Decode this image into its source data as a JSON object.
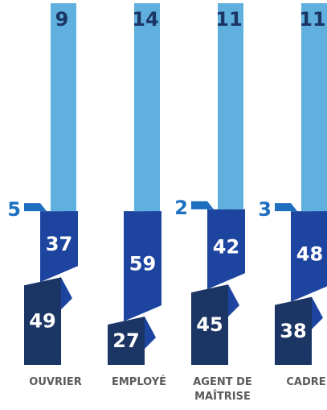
{
  "chart_data": {
    "type": "bar",
    "stacked": true,
    "style": "folded ribbon columns",
    "categories": [
      "OUVRIER",
      "EMPLOYÉ",
      "AGENT DE MAÎTRISE",
      "CADRE"
    ],
    "category_label_lines": [
      [
        "OUVRIER"
      ],
      [
        "EMPLOYÉ"
      ],
      [
        "AGENT DE",
        "MAÎTRISE"
      ],
      [
        "CADRE"
      ]
    ],
    "series": [
      {
        "values": [
          49,
          27,
          45,
          38
        ]
      },
      {
        "values": [
          37,
          59,
          42,
          48
        ]
      },
      {
        "values": [
          5,
          0,
          2,
          3
        ]
      },
      {
        "values": [
          9,
          14,
          11,
          11
        ]
      }
    ],
    "data_labels": [
      [
        "49",
        "27",
        "45",
        "38"
      ],
      [
        "37",
        "59",
        "42",
        "48"
      ],
      [
        "5",
        "",
        "2",
        "3"
      ],
      [
        "9",
        "14",
        "11",
        "11"
      ]
    ],
    "colors": [
      "#1b3564",
      "#1d45a0",
      "#1e6fc0",
      "#5fb0de"
    ],
    "label_colors": [
      "#ffffff",
      "#ffffff",
      "#1e6fc0",
      "#1b3564"
    ],
    "grid": false,
    "legend": "none"
  }
}
